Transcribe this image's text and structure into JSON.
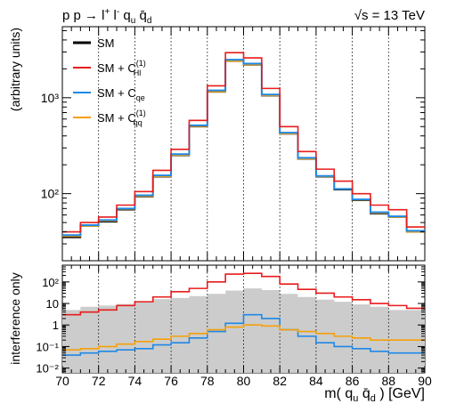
{
  "title": {
    "process": "p p → l⁺ l⁻ q_u q̄_d",
    "energy": "√s = 13 TeV"
  },
  "chart_data": [
    {
      "type": "line",
      "panel": "top",
      "x_bin_edges": [
        70,
        71,
        72,
        73,
        74,
        75,
        76,
        77,
        78,
        79,
        80,
        81,
        82,
        83,
        84,
        85,
        86,
        87,
        88,
        89,
        90
      ],
      "ylabel": "(arbitrary units)",
      "yscale": "log",
      "ylim": [
        20,
        5500
      ],
      "yticks": [
        "10²",
        "10³"
      ],
      "grid": "vertical dotted at every 2 GeV",
      "legend_position": "top-left",
      "series": [
        {
          "name": "SM",
          "color": "#000000",
          "values": [
            35,
            46,
            51,
            68,
            93,
            150,
            250,
            500,
            1150,
            2400,
            2200,
            1050,
            420,
            230,
            150,
            110,
            85,
            62,
            57,
            40
          ]
        },
        {
          "name": "SM + C_Hl^(1)",
          "color": "#e81c1c",
          "values": [
            40,
            50,
            57,
            76,
            105,
            175,
            290,
            580,
            1330,
            2950,
            2600,
            1250,
            500,
            275,
            180,
            135,
            100,
            76,
            68,
            45
          ]
        },
        {
          "name": "SM + C_qe",
          "color": "#1e88e5",
          "values": [
            37,
            47,
            53,
            70,
            96,
            155,
            258,
            515,
            1190,
            2490,
            2270,
            1080,
            432,
            236,
            153,
            112,
            87,
            64,
            58,
            41
          ]
        },
        {
          "name": "SM + C_qq^(1)",
          "color": "#f5a00a",
          "values": [
            36,
            46,
            52,
            69,
            94,
            151,
            252,
            503,
            1155,
            2410,
            2210,
            1055,
            422,
            231,
            151,
            111,
            86,
            63,
            57,
            40
          ]
        }
      ]
    },
    {
      "type": "line",
      "panel": "bottom",
      "x_bin_edges": [
        70,
        71,
        72,
        73,
        74,
        75,
        76,
        77,
        78,
        79,
        80,
        81,
        82,
        83,
        84,
        85,
        86,
        87,
        88,
        89,
        90
      ],
      "xlabel": "m( q_u q̄_d ) [GeV]",
      "xticks": [
        "70",
        "72",
        "74",
        "76",
        "78",
        "80",
        "82",
        "84",
        "86",
        "88",
        "90"
      ],
      "ylabel": "interference only",
      "yscale": "log",
      "ylim": [
        0.006,
        600
      ],
      "yticks": [
        "10⁻²",
        "10⁻¹",
        "1",
        "10",
        "10²"
      ],
      "filled_band": {
        "color": "#cccccc",
        "values": [
          5,
          7,
          8,
          9.5,
          12,
          16,
          18,
          22,
          28,
          40,
          50,
          42,
          28,
          20,
          15,
          12,
          9,
          7,
          5,
          5
        ]
      },
      "series": [
        {
          "name": "SM + C_Hl^(1)",
          "color": "#e81c1c",
          "values": [
            3,
            4,
            5,
            8,
            12,
            20,
            35,
            50,
            100,
            230,
            250,
            180,
            80,
            45,
            30,
            20,
            15,
            10,
            8,
            6
          ]
        },
        {
          "name": "SM + C_qe",
          "color": "#1e88e5",
          "values": [
            0.04,
            0.05,
            0.06,
            0.07,
            0.08,
            0.12,
            0.15,
            0.25,
            0.5,
            1.2,
            3,
            2,
            0.6,
            0.3,
            0.15,
            0.1,
            0.08,
            0.06,
            0.05,
            0.05
          ]
        },
        {
          "name": "SM + C_qq^(1)",
          "color": "#f5a00a",
          "values": [
            0.07,
            0.08,
            0.1,
            0.13,
            0.17,
            0.22,
            0.3,
            0.4,
            0.6,
            0.8,
            1,
            0.9,
            0.6,
            0.5,
            0.4,
            0.3,
            0.25,
            0.2,
            0.2,
            0.2
          ]
        }
      ]
    }
  ]
}
